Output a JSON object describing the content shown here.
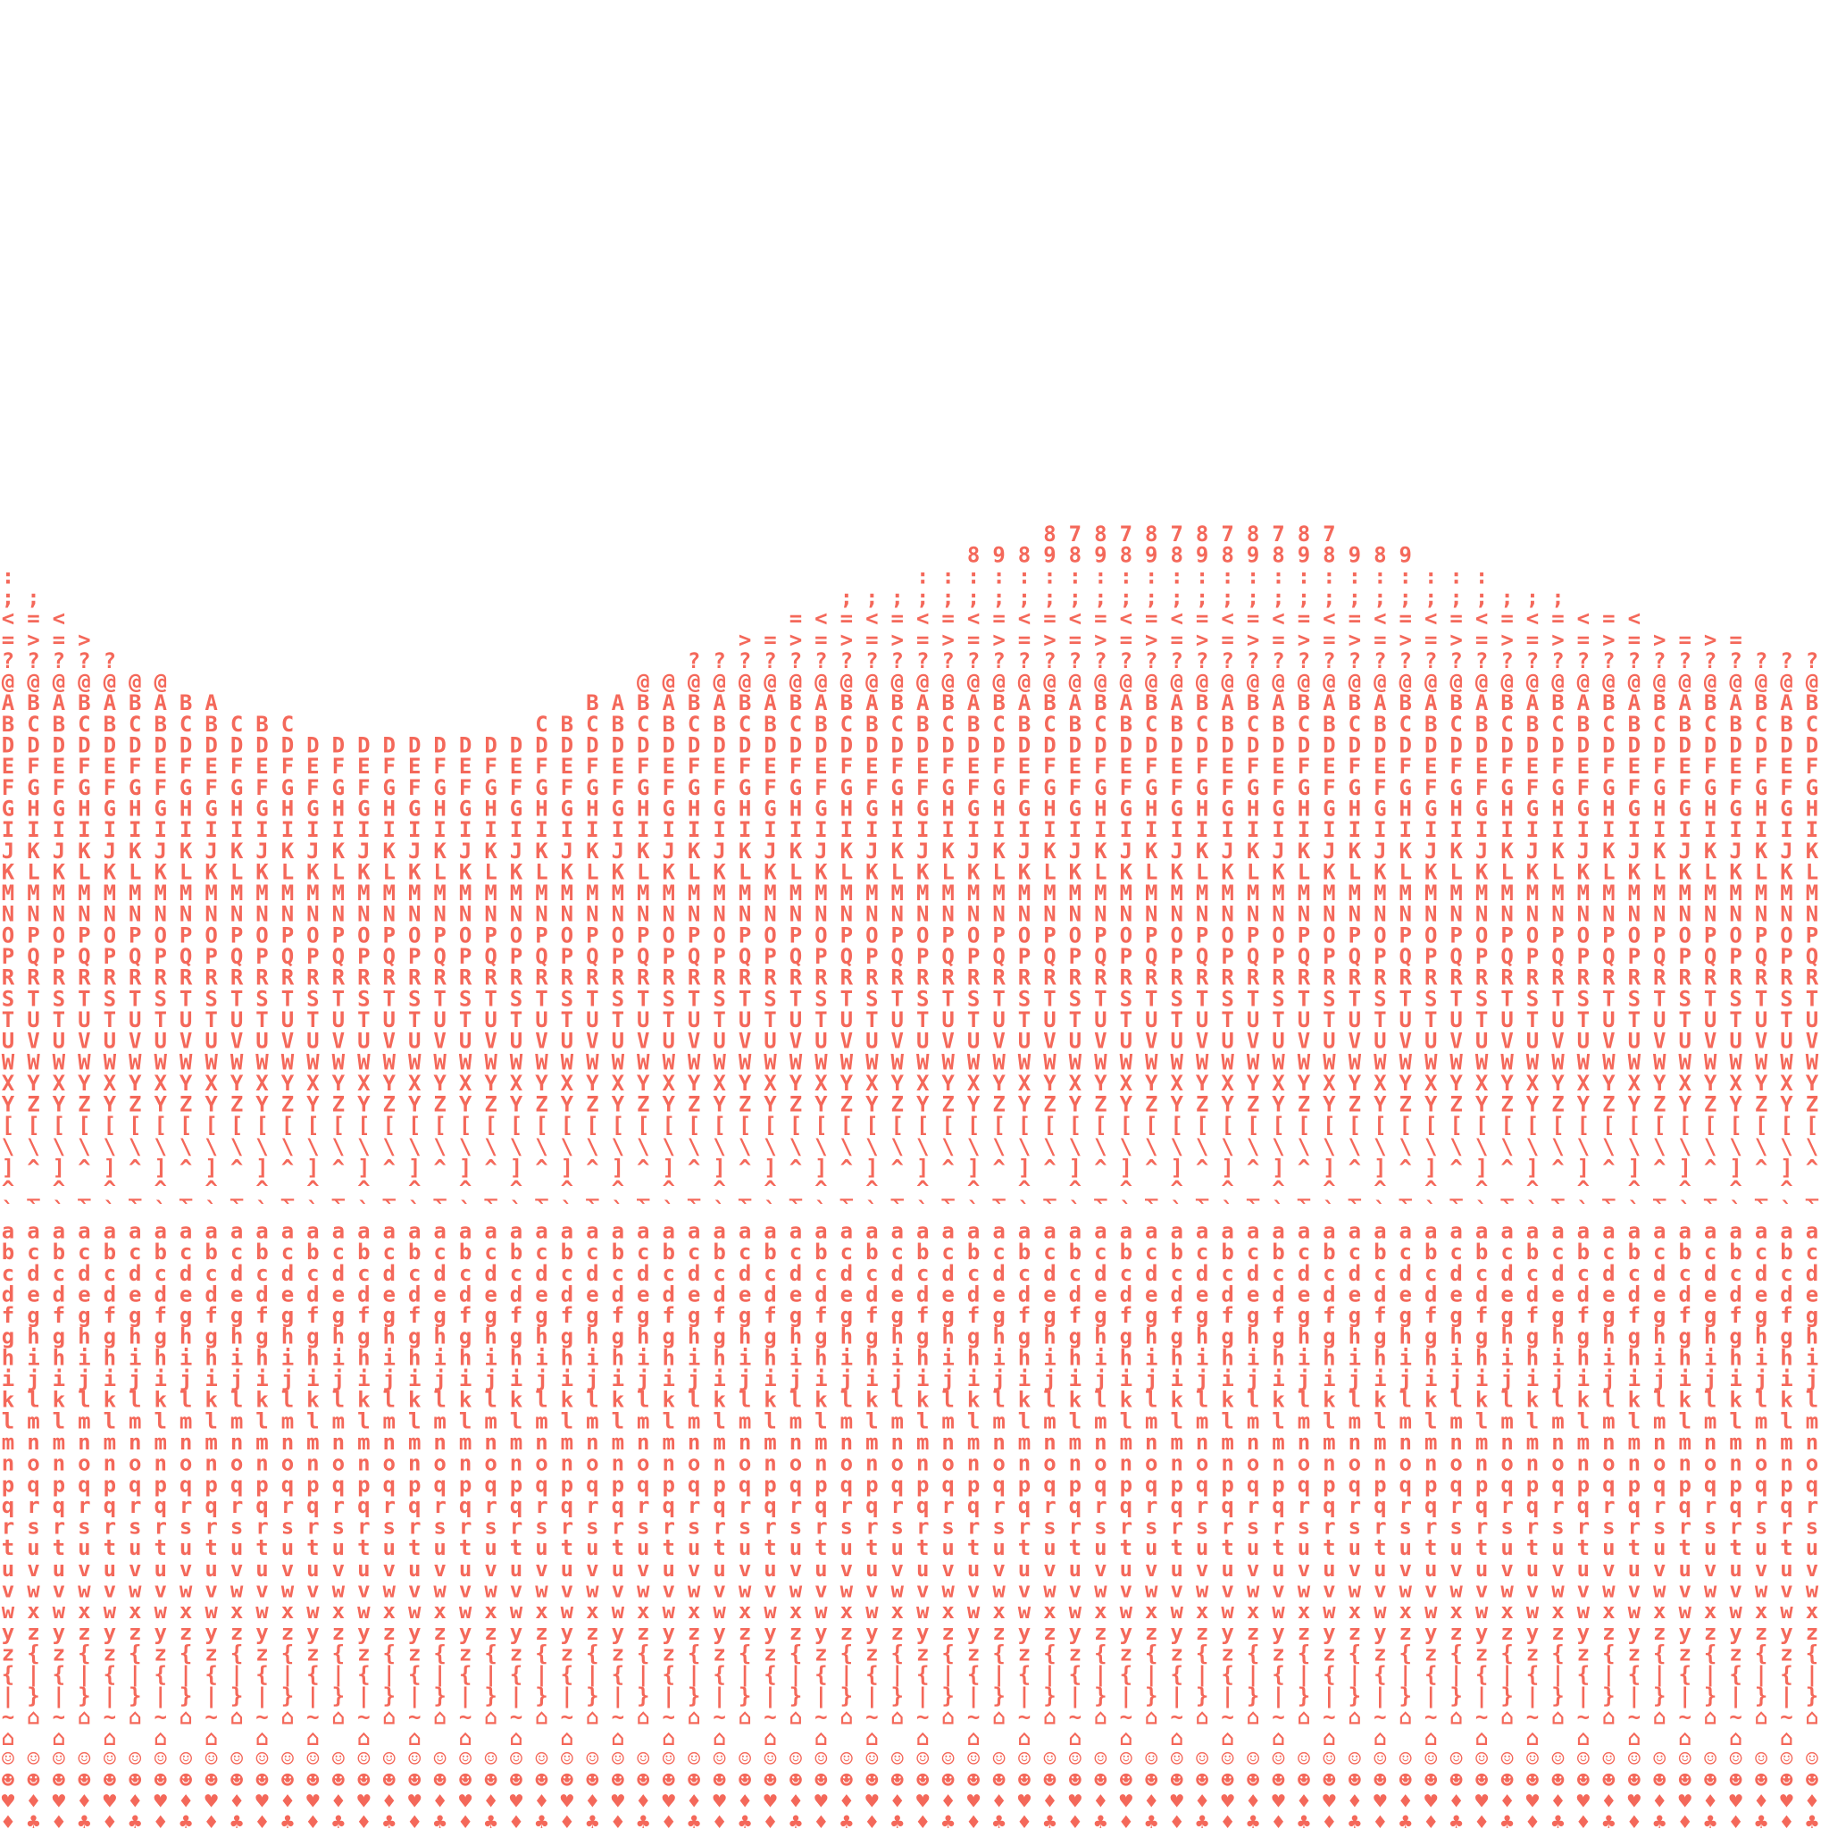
{
  "columns": [
    "  :;<=?@ABDEFGIJKMNOPRSTUWXY[\\]^`abcdfghiklmnpqrtuvwyz{|~⌂☺☻♥♦",
    "   ;=>?@BCDFGHIKLMNPQRTUVWYZ[\\^_`acdeghijlmnoqrsuvwxz{|}⌂ ☺☻♦♣",
    "    <=?@ABDEFGIJKMNOPRSTUWXY[\\]^`abcdfghiklmnpqrtuvwyz{|~⌂☺☻♥♦",
    "     >?@BCDFGHIKLMNPQRTUVWYZ[\\^_`acdeghijlmnoqrsuvwxz{|}⌂ ☺☻♦♣",
    "      ?@ABDEFGIJKMNOPRSTUWXY[\\]^`abcdfghiklmnpqrtuvwyz{|~⌂☺☻♥♦",
    "       @BCDFGHIKLMNPQRTUVWYZ[\\^_`acdeghijlmnoqrsuvwxz{|}⌂ ☺☻♦♣",
    "       @ABDEFGIJKMNOPRSTUWXY[\\]^`abcdfghiklmnpqrtuvwyz{|~⌂☺☻♥♦",
    "        BCDFGHIKLMNPQRTUVWYZ[\\^_`acdeghijlmnoqrsuvwxz{|}⌂ ☺☻♦♣",
    "        ABDEFGIJKMNOPRSTUWXY[\\]^`abcdfghiklmnpqrtuvwyz{|~⌂☺☻♥♦",
    "         CDFGHIKLMNPQRTUVWYZ[\\^_`acdeghijlmnoqrsuvwxz{|}⌂ ☺☻♦♣",
    "         BDEFGIJKMNOPRSTUWXY[\\]^`abcdfghiklmnpqrtuvwyz{|~⌂☺☻♥♦",
    "         CDFGHIKLMNPQRTUVWYZ[\\^_`acdeghijlmnoqrsuvwxz{|}⌂ ☺☻♦♣",
    "          DEFGIJKMNOPRSTUWXY[\\]^`abcdfghiklmnpqrtuvwyz{|~⌂☺☻♥♦",
    "          DFGHIKLMNPQRTUVWYZ[\\^_`acdeghijlmnoqrsuvwxz{|}⌂ ☺☻♦♣",
    "          DEFGIJKMNOPRSTUWXY[\\]^`abcdfghiklmnpqrtuvwyz{|~⌂☺☻♥♦",
    "          DFGHIKLMNPQRTUVWYZ[\\^_`acdeghijlmnoqrsuvwxz{|}⌂ ☺☻♦♣",
    "          DEFGIJKMNOPRSTUWXY[\\]^`abcdfghiklmnpqrtuvwyz{|~⌂☺☻♥♦",
    "          DFGHIKLMNPQRTUVWYZ[\\^_`acdeghijlmnoqrsuvwxz{|}⌂ ☺☻♦♣",
    "          DEFGIJKMNOPRSTUWXY[\\]^`abcdfghiklmnpqrtuvwyz{|~⌂☺☻♥♦",
    "          DFGHIKLMNPQRTUVWYZ[\\^_`acdeghijlmnoqrsuvwxz{|}⌂ ☺☻♦♣",
    "          DEFGIJKMNOPRSTUWXY[\\]^`abcdfghiklmnpqrtuvwyz{|~⌂☺☻♥♦",
    "         CDFGHIKLMNPQRTUVWYZ[\\^_`acdeghijlmnoqrsuvwxz{|}⌂ ☺☻♦♣",
    "         BDEFGIJKMNOPRSTUWXY[\\]^`abcdfghiklmnpqrtuvwyz{|~⌂☺☻♥♦",
    "        BCDFGHIKLMNPQRTUVWYZ[\\^_`acdeghijlmnoqrsuvwxz{|}⌂ ☺☻♦♣",
    "        ABDEFGIJKMNOPRSTUWXY[\\]^`abcdfghiklmnpqrtuvwyz{|~⌂☺☻♥♦",
    "       @BCDFGHIKLMNPQRTUVWYZ[\\^_`acdeghijlmnoqrsuvwxz{|}⌂ ☺☻♦♣",
    "       @ABDEFGIJKMNOPRSTUWXY[\\]^`abcdfghiklmnpqrtuvwyz{|~⌂☺☻♥♦",
    "      ?@BCDFGHIKLMNPQRTUVWYZ[\\^_`acdeghijlmnoqrsuvwxz{|}⌂ ☺☻♦♣",
    "      ?@ABDEFGIJKMNOPRSTUWXY[\\]^`abcdfghiklmnpqrtuvwyz{|~⌂☺☻♥♦",
    "     >?@BCDFGHIKLMNPQRTUVWYZ[\\^_`acdeghijlmnoqrsuvwxz{|}⌂ ☺☻♦♣",
    "     =?@ABDEFGIJKMNOPRSTUWXY[\\]^`abcdfghiklmnpqrtuvwyz{|~⌂☺☻♥♦",
    "    =>?@BCDFGHIKLMNPQRTUVWYZ[\\^_`acdeghijlmnoqrsuvwxz{|}⌂ ☺☻♦♣",
    "    <=?@ABDEFGIJKMNOPRSTUWXY[\\]^`abcdfghiklmnpqrtuvwyz{|~⌂☺☻♥♦",
    "   ;=>?@BCDFGHIKLMNPQRTUVWYZ[\\^_`acdeghijlmnoqrsuvwxz{|}⌂ ☺☻♦♣",
    "   ;<=?@ABDEFGIJKMNOPRSTUWXY[\\]^`abcdfghiklmnpqrtuvwyz{|~⌂☺☻♥♦",
    "   ;=>?@BCDFGHIKLMNPQRTUVWYZ[\\^_`acdeghijlmnoqrsuvwxz{|}⌂ ☺☻♦♣",
    "  :;<=?@ABDEFGIJKMNOPRSTUWXY[\\]^`abcdfghiklmnpqrtuvwyz{|~⌂☺☻♥♦",
    "  :;=>?@BCDFGHIKLMNPQRTUVWYZ[\\^_`acdeghijlmnoqrsuvwxz{|}⌂ ☺☻♦♣",
    " 8:;<=?@ABDEFGIJKMNOPRSTUWXY[\\]^`abcdfghiklmnpqrtuvwyz{|~⌂☺☻♥♦",
    " 9:;=>?@BCDFGHIKLMNPQRTUVWYZ[\\^_`acdeghijlmnoqrsuvwxz{|}⌂ ☺☻♦♣",
    " 8:;<=?@ABDEFGIJKMNOPRSTUWXY[\\]^`abcdfghiklmnpqrtuvwyz{|~⌂☺☻♥♦",
    "89:;=>?@BCDFGHIKLMNPQRTUVWYZ[\\^_`acdeghijlmnoqrsuvwxz{|}⌂ ☺☻♦♣",
    "78:;<=?@ABDEFGIJKMNOPRSTUWXY[\\]^`abcdfghiklmnpqrtuvwyz{|~⌂☺☻♥♦",
    "89:;=>?@BCDFGHIKLMNPQRTUVWYZ[\\^_`acdeghijlmnoqrsuvwxz{|}⌂ ☺☻♦♣",
    "78:;<=?@ABDEFGIJKMNOPRSTUWXY[\\]^`abcdfghiklmnpqrtuvwyz{|~⌂☺☻♥♦",
    "89:;=>?@BCDFGHIKLMNPQRTUVWYZ[\\^_`acdeghijlmnoqrsuvwxz{|}⌂ ☺☻♦♣",
    "78:;<=?@ABDEFGIJKMNOPRSTUWXY[\\]^`abcdfghiklmnpqrtuvwyz{|~⌂☺☻♥♦",
    "89:;=>?@BCDFGHIKLMNPQRTUVWYZ[\\^_`acdeghijlmnoqrsuvwxz{|}⌂ ☺☻♦♣",
    "78:;<=?@ABDEFGIJKMNOPRSTUWXY[\\]^`abcdfghiklmnpqrtuvwyz{|~⌂☺☻♥♦",
    "89:;=>?@BCDFGHIKLMNPQRTUVWYZ[\\^_`acdeghijlmnoqrsuvwxz{|}⌂ ☺☻♦♣",
    "78:;<=?@ABDEFGIJKMNOPRSTUWXY[\\]^`abcdfghiklmnpqrtuvwyz{|~⌂☺☻♥♦",
    "89:;=>?@BCDFGHIKLMNPQRTUVWYZ[\\^_`acdeghijlmnoqrsuvwxz{|}⌂ ☺☻♦♣",
    "78:;<=?@ABDEFGIJKMNOPRSTUWXY[\\]^`abcdfghiklmnpqrtuvwyz{|~⌂☺☻♥♦",
    " 9:;=>?@BCDFGHIKLMNPQRTUVWYZ[\\^_`acdeghijlmnoqrsuvwxz{|}⌂ ☺☻♦♣",
    " 8:;<=?@ABDEFGIJKMNOPRSTUWXY[\\]^`abcdfghiklmnpqrtuvwyz{|~⌂☺☻♥♦",
    " 9:;=>?@BCDFGHIKLMNPQRTUVWYZ[\\^_`acdeghijlmnoqrsuvwxz{|}⌂ ☺☻♦♣",
    "  :;<=?@ABDEFGIJKMNOPRSTUWXY[\\]^`abcdfghiklmnpqrtuvwyz{|~⌂☺☻♥♦",
    "  :;=>?@BCDFGHIKLMNPQRTUVWYZ[\\^_`acdeghijlmnoqrsuvwxz{|}⌂ ☺☻♦♣",
    "  :;<=?@ABDEFGIJKMNOPRSTUWXY[\\]^`abcdfghiklmnpqrtuvwyz{|~⌂☺☻♥♦",
    "   ;=>?@BCDFGHIKLMNPQRTUVWYZ[\\^_`acdeghijlmnoqrsuvwxz{|}⌂ ☺☻♦♣",
    "   ;<=?@ABDEFGIJKMNOPRSTUWXY[\\]^`abcdfghiklmnpqrtuvwyz{|~⌂☺☻♥♦",
    "   ;=>?@BCDFGHIKLMNPQRTUVWYZ[\\^_`acdeghijlmnoqrsuvwxz{|}⌂ ☺☻♦♣",
    "    <=?@ABDEFGIJKMNOPRSTUWXY[\\]^`abcdfghiklmnpqrtuvwyz{|~⌂☺☻♥♦",
    "    =>?@BCDFGHIKLMNPQRTUVWYZ[\\^_`acdeghijlmnoqrsuvwxz{|}⌂ ☺☻♦♣",
    "    <=?@ABDEFGIJKMNOPRSTUWXY[\\]^`abcdfghiklmnpqrtuvwyz{|~⌂☺☻♥♦",
    "     >?@BCDFGHIKLMNPQRTUVWYZ[\\^_`acdeghijlmnoqrsuvwxz{|}⌂ ☺☻♦♣",
    "     =?@ABDEFGIJKMNOPRSTUWXY[\\]^`abcdfghiklmnpqrtuvwyz{|~⌂☺☻♥♦",
    "     >?@BCDFGHIKLMNPQRTUVWYZ[\\^_`acdeghijlmnoqrsuvwxz{|}⌂ ☺☻♦♣",
    "     =?@ABDEFGIJKMNOPRSTUWXY[\\]^`abcdfghiklmnpqrtuvwyz{|~⌂☺☻♥♦",
    "      ?@BCDFGHIKLMNPQRTUVWYZ[\\^_`acdeghijlmnoqrsuvwxz{|}⌂ ☺☻♦♣",
    "      ?@ABDEFGIJKMNOPRSTUWXY[\\]^`abcdfghiklmnpqrtuvwyz{|~⌂☺☻♥♦",
    "      ?@BCDFGHIKLMNPQRTUVWYZ[\\^_`acdeghijlmnoqrsuvwxz{|}⌂ ☺☻♦♣"
  ]
}
